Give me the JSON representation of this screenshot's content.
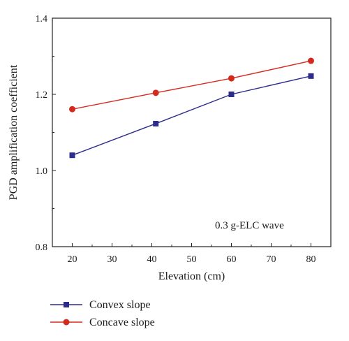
{
  "chart_data": {
    "type": "line",
    "x": [
      20,
      41,
      60,
      80
    ],
    "series": [
      {
        "name": "Convex slope",
        "values": [
          1.04,
          1.123,
          1.2,
          1.248
        ],
        "color": "#2c2c8c",
        "marker": "square"
      },
      {
        "name": "Concave slope",
        "values": [
          1.161,
          1.204,
          1.242,
          1.288
        ],
        "color": "#d42a1e",
        "marker": "circle"
      }
    ],
    "xlabel": "Elevation (cm)",
    "ylabel": "PGD amplification coefficient",
    "xlim": [
      15,
      85
    ],
    "ylim": [
      0.8,
      1.4
    ],
    "xticks": [
      20,
      30,
      40,
      50,
      60,
      70,
      80
    ],
    "yticks": [
      0.8,
      1.0,
      1.2,
      1.4
    ],
    "xtick_labels": [
      "20",
      "30",
      "40",
      "50",
      "60",
      "70",
      "80"
    ],
    "ytick_labels": [
      "0.8",
      "1.0",
      "1.2",
      "1.4"
    ],
    "annotation": "0.3 g-ELC wave",
    "grid": false,
    "legend_position": "bottom-left, below the plot"
  }
}
